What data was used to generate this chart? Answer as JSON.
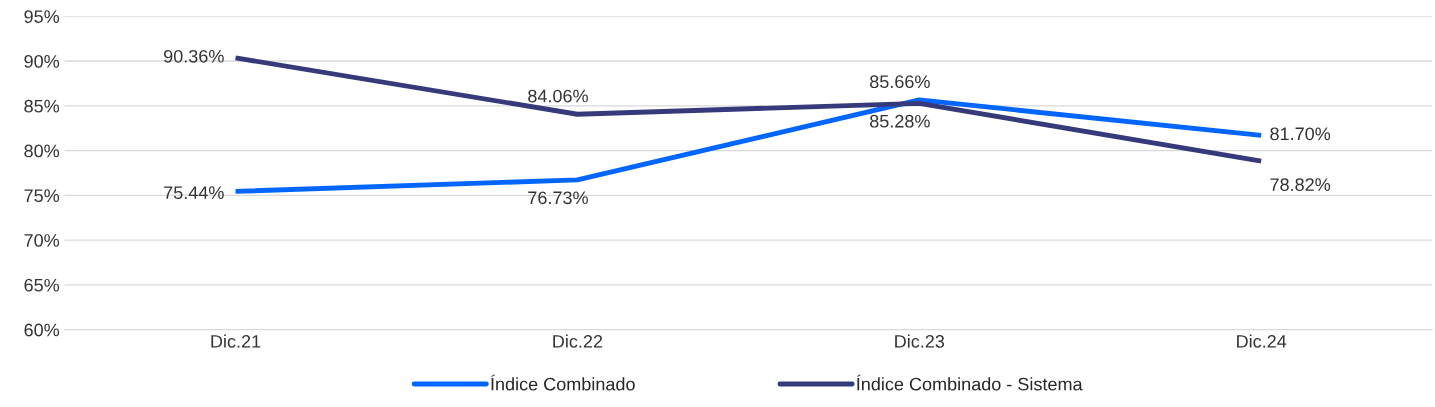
{
  "chart_data": {
    "type": "line",
    "categories": [
      "Dic.21",
      "Dic.22",
      "Dic.23",
      "Dic.24"
    ],
    "series": [
      {
        "name": "Índice Combinado",
        "color": "#0066ff",
        "values": [
          75.44,
          76.73,
          85.66,
          81.7
        ],
        "value_labels": [
          "75.44%",
          "76.73%",
          "85.66%",
          "81.70%"
        ]
      },
      {
        "name": "Índice Combinado - Sistema",
        "color": "#363a7a",
        "values": [
          90.36,
          84.06,
          85.28,
          78.82
        ],
        "value_labels": [
          "90.36%",
          "84.06%",
          "85.28%",
          "78.82%"
        ]
      }
    ],
    "ylim": [
      60,
      95
    ],
    "yticks": [
      {
        "value": 60,
        "label": "60%"
      },
      {
        "value": 65,
        "label": "65%"
      },
      {
        "value": 70,
        "label": "70%"
      },
      {
        "value": 75,
        "label": "75%"
      },
      {
        "value": 80,
        "label": "80%"
      },
      {
        "value": 85,
        "label": "85%"
      },
      {
        "value": 90,
        "label": "90%"
      },
      {
        "value": 95,
        "label": "95%"
      }
    ],
    "grid": "y",
    "legend": "bottom",
    "marker": "none",
    "line_style": "solid"
  }
}
